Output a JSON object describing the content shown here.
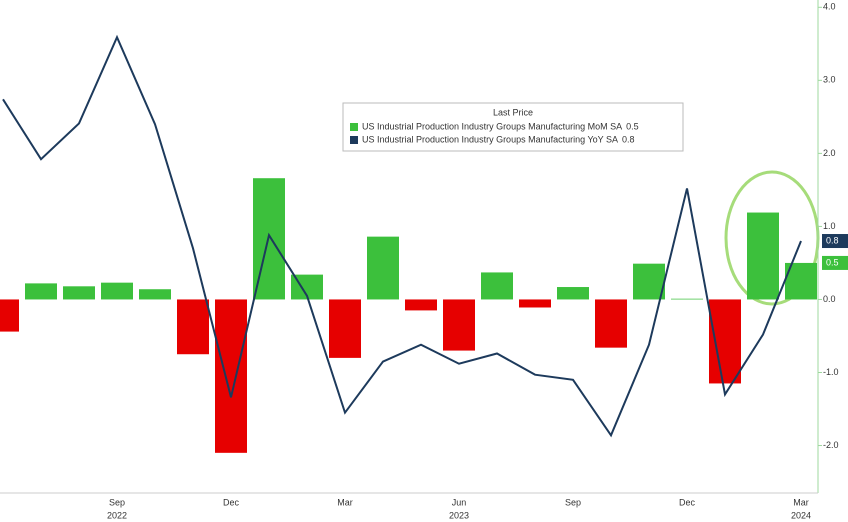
{
  "chart_data": {
    "type": "bar-line",
    "legend_title": "Last Price",
    "categories": [
      null,
      null,
      null,
      "Sep",
      null,
      null,
      "Dec",
      null,
      null,
      "Mar",
      null,
      null,
      "Jun",
      null,
      null,
      "Sep",
      null,
      null,
      "Dec",
      null,
      null,
      "Mar"
    ],
    "years": [
      {
        "index": 3,
        "label": "2022"
      },
      {
        "index": 12,
        "label": "2023"
      },
      {
        "index": 21,
        "label": "2024"
      }
    ],
    "series": [
      {
        "name": "US Industrial Production Industry Groups Manufacturing MoM SA",
        "type": "bar",
        "color": "#3cc03c",
        "negative_color": "#e60000",
        "values": [
          -0.44,
          0.22,
          0.18,
          0.23,
          0.14,
          -0.75,
          -2.1,
          1.66,
          0.34,
          -0.8,
          0.86,
          -0.15,
          -0.7,
          0.37,
          -0.11,
          0.17,
          -0.66,
          0.49,
          0.01,
          -1.15,
          1.19,
          0.5
        ]
      },
      {
        "name": "US Industrial Production Industry Groups Manufacturing YoY SA",
        "type": "line",
        "color": "#1d3a5c",
        "values": [
          2.74,
          1.92,
          2.41,
          3.59,
          2.4,
          0.7,
          -1.34,
          0.88,
          0.05,
          -1.55,
          -0.85,
          -0.62,
          -0.88,
          -0.74,
          -1.03,
          -1.1,
          -1.86,
          -0.62,
          1.52,
          -1.3,
          -0.48,
          0.8
        ]
      }
    ],
    "ylim": [
      -2.65,
      4.1
    ],
    "yticks": [
      {
        "value": 4,
        "label": "4.0"
      },
      {
        "value": 3,
        "label": "3.0"
      },
      {
        "value": 2,
        "label": "2.0"
      },
      {
        "value": 1,
        "label": "1.0"
      },
      {
        "value": 0,
        "label": "0.0"
      },
      {
        "value": -1,
        "label": "-1.0"
      },
      {
        "value": -2,
        "label": "-2.0"
      }
    ],
    "grid": false
  }
}
